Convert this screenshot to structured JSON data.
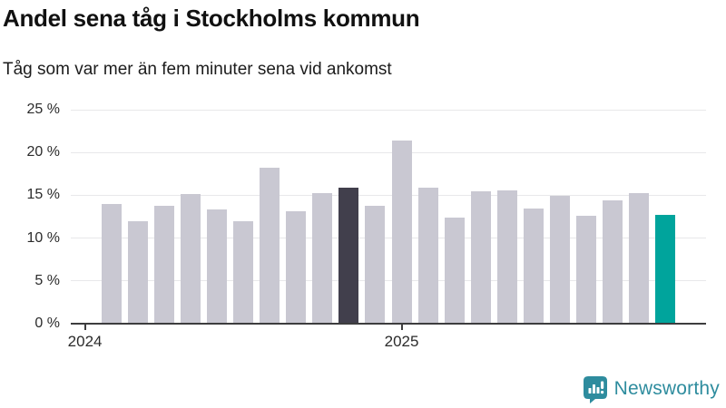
{
  "chart_data": {
    "type": "bar",
    "title": "Andel sena tåg i Stockholms kommun",
    "subtitle": "Tåg som var mer än fem minuter sena vid ankomst",
    "values": [
      14.0,
      12.0,
      13.8,
      15.2,
      13.4,
      12.0,
      18.2,
      13.1,
      15.3,
      15.9,
      13.8,
      21.4,
      15.9,
      12.4,
      15.5,
      15.6,
      13.5,
      14.9,
      12.6,
      14.4,
      15.3,
      12.7
    ],
    "unit": "%",
    "ylim": [
      0,
      25
    ],
    "y_ticks": [
      25,
      20,
      15,
      10,
      5,
      0
    ],
    "y_tick_suffix": " %",
    "x_ticks": [
      {
        "label": "2024",
        "slot": 0
      },
      {
        "label": "2025",
        "slot": 12
      }
    ],
    "bar_start_slot": 1,
    "grid": true,
    "legend": "none",
    "highlights": {
      "dark_index": 9,
      "accent_index": 21
    },
    "colors": {
      "bar_default": "#c9c8d2",
      "bar_dark": "#413f4c",
      "bar_accent": "#00a49c",
      "gridline": "#e8e8ea",
      "axis": "#3d3d3e",
      "text": "#1c1c1c"
    }
  },
  "branding": {
    "logo_text": "Newsworthy",
    "logo_color": "#2e8c9e"
  }
}
